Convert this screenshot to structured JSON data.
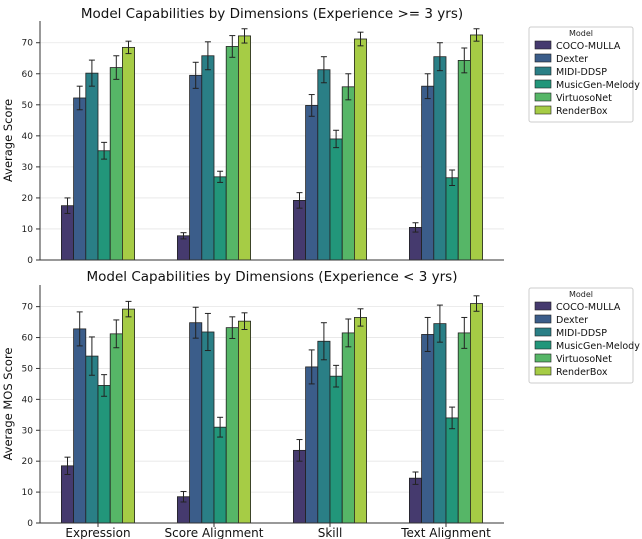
{
  "colors": {
    "COCO-MULLA": "#453a6e",
    "Dexter": "#3b5d8a",
    "MIDI-DDSP": "#2a7f86",
    "MusicGen-Melody": "#22967a",
    "VirtuosoNet": "#56b667",
    "RenderBox": "#a6cc45"
  },
  "chart_data": [
    {
      "type": "bar",
      "title": "Model Capabilities by Dimensions (Experience >= 3 yrs)",
      "xlabel": "",
      "ylabel": "Average Score",
      "ylim": [
        0,
        77
      ],
      "yticks": [
        0,
        10,
        20,
        30,
        40,
        50,
        60,
        70
      ],
      "grid": "y",
      "legend_title": "Model",
      "legend_placement": "outside-right",
      "show_category_labels": false,
      "categories": [
        "Expression",
        "Score Alignment",
        "Skill",
        "Text Alignment"
      ],
      "series": [
        {
          "name": "COCO-MULLA",
          "values": [
            17.5,
            7.8,
            19.2,
            10.5
          ],
          "errors": [
            2.5,
            1.0,
            2.5,
            1.5
          ]
        },
        {
          "name": "Dexter",
          "values": [
            52.2,
            59.5,
            49.8,
            56.0
          ],
          "errors": [
            3.8,
            4.2,
            3.5,
            4.0
          ]
        },
        {
          "name": "MIDI-DDSP",
          "values": [
            60.2,
            65.8,
            61.3,
            65.5
          ],
          "errors": [
            4.2,
            4.5,
            4.2,
            4.5
          ]
        },
        {
          "name": "MusicGen-Melody",
          "values": [
            35.2,
            26.8,
            39.0,
            26.5
          ],
          "errors": [
            2.7,
            1.8,
            2.8,
            2.5
          ]
        },
        {
          "name": "VirtuosoNet",
          "values": [
            62.0,
            68.8,
            55.8,
            64.3
          ],
          "errors": [
            3.8,
            3.5,
            4.2,
            4.0
          ]
        },
        {
          "name": "RenderBox",
          "values": [
            68.5,
            72.2,
            71.2,
            72.5
          ],
          "errors": [
            2.0,
            2.3,
            2.2,
            2.0
          ]
        }
      ]
    },
    {
      "type": "bar",
      "title": "Model Capabilities by Dimensions (Experience < 3 yrs)",
      "xlabel": "",
      "ylabel": "Average MOS Score",
      "ylim": [
        0,
        77
      ],
      "yticks": [
        0,
        10,
        20,
        30,
        40,
        50,
        60,
        70
      ],
      "grid": "y",
      "legend_title": "Model",
      "legend_placement": "outside-right",
      "show_category_labels": true,
      "categories": [
        "Expression",
        "Score Alignment",
        "Skill",
        "Text Alignment"
      ],
      "series": [
        {
          "name": "COCO-MULLA",
          "values": [
            18.5,
            8.5,
            23.5,
            14.5
          ],
          "errors": [
            2.8,
            1.7,
            3.5,
            2.0
          ]
        },
        {
          "name": "Dexter",
          "values": [
            62.8,
            64.8,
            50.5,
            61.0
          ],
          "errors": [
            5.5,
            5.0,
            5.5,
            5.5
          ]
        },
        {
          "name": "MIDI-DDSP",
          "values": [
            54.0,
            61.8,
            58.8,
            64.5
          ],
          "errors": [
            6.2,
            6.0,
            6.0,
            6.0
          ]
        },
        {
          "name": "MusicGen-Melody",
          "values": [
            44.5,
            31.0,
            47.5,
            34.0
          ],
          "errors": [
            3.5,
            3.2,
            3.5,
            3.5
          ]
        },
        {
          "name": "VirtuosoNet",
          "values": [
            61.2,
            63.2,
            61.5,
            61.5
          ],
          "errors": [
            4.5,
            3.5,
            4.5,
            5.0
          ]
        },
        {
          "name": "RenderBox",
          "values": [
            69.2,
            65.3,
            66.5,
            71.0
          ],
          "errors": [
            2.5,
            2.7,
            2.8,
            2.5
          ]
        }
      ]
    }
  ]
}
